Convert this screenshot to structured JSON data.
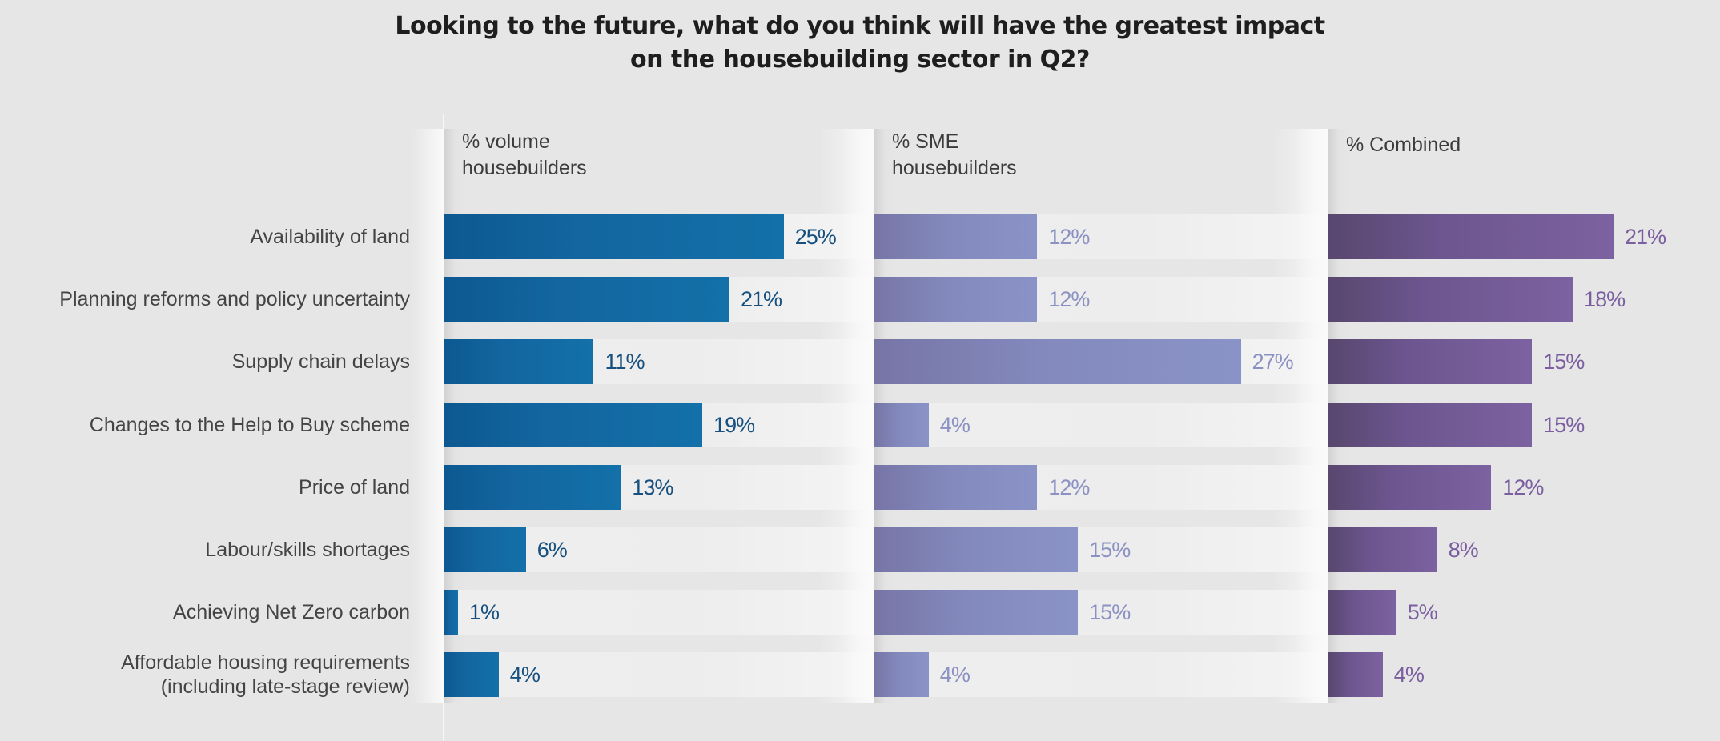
{
  "title_lines": [
    "Looking to the future, what do you think will have the greatest impact",
    "on the housebuilding sector in Q2?"
  ],
  "chart_data": {
    "type": "bar",
    "orientation": "horizontal",
    "title": "Looking to the future, what do you think will have the greatest impact on the housebuilding sector in Q2?",
    "categories": [
      "Availability of land",
      "Planning reforms and policy uncertainty",
      "Supply chain delays",
      "Changes to the Help to Buy scheme",
      "Price of land",
      "Labour/skills shortages",
      "Achieving Net Zero carbon",
      "Affordable housing requirements\n(including late-stage review)"
    ],
    "series": [
      {
        "name": "% volume\nhousebuilders",
        "values": [
          25,
          21,
          11,
          19,
          13,
          6,
          1,
          4
        ],
        "color": "#1370a8",
        "label_color": "#17507e"
      },
      {
        "name": "% SME\nhousebuilders",
        "values": [
          12,
          12,
          27,
          4,
          12,
          15,
          15,
          4
        ],
        "color": "#8a93c7",
        "label_color": "#8b91c2"
      },
      {
        "name": "% Combined",
        "values": [
          21,
          18,
          15,
          15,
          12,
          8,
          5,
          4
        ],
        "color": "#7c62a0",
        "label_color": "#7a5ea0"
      }
    ],
    "value_suffix": "%",
    "xlabel": "",
    "ylabel": "",
    "xlim": [
      0,
      30
    ],
    "grid": false,
    "legend": "panel-headers"
  }
}
